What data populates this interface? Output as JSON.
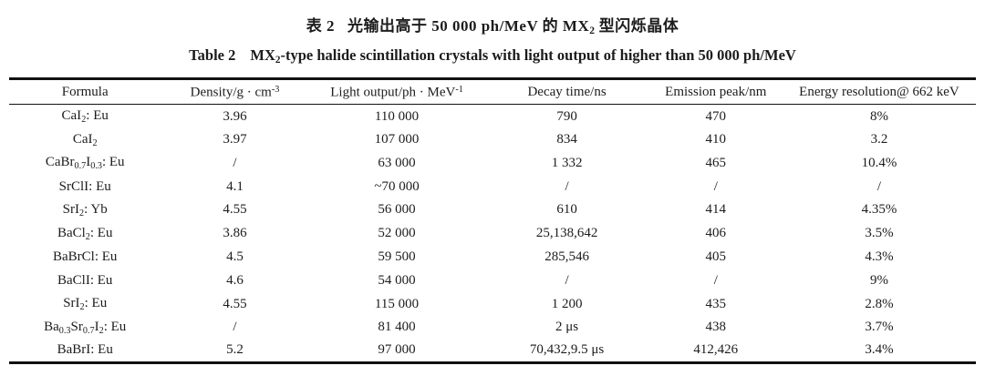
{
  "title": {
    "zh_label": "表 2",
    "zh_text": "光输出高于 50 000 ph/MeV 的 MX_{2} 型闪烁晶体",
    "en_label": "Table 2",
    "en_text": "MX_{2}-type halide scintillation crystals with light output of higher than 50 000 ph/MeV"
  },
  "table": {
    "columns": [
      "Formula",
      "Density/g · cm^{-3}",
      "Light output/ph · MeV^{-1}",
      "Decay time/ns",
      "Emission peak/nm",
      "Energy resolution@ 662 keV"
    ],
    "rows": [
      [
        "CaI_{2}: Eu",
        "3.96",
        "110 000",
        "790",
        "470",
        "8%"
      ],
      [
        "CaI_{2}",
        "3.97",
        "107 000",
        "834",
        "410",
        "3.2"
      ],
      [
        "CaBr_{0.7}I_{0.3}: Eu",
        "/",
        "63 000",
        "1 332",
        "465",
        "10.4%"
      ],
      [
        "SrClI: Eu",
        "4.1",
        "~70 000",
        "/",
        "/",
        "/"
      ],
      [
        "SrI_{2}: Yb",
        "4.55",
        "56 000",
        "610",
        "414",
        "4.35%"
      ],
      [
        "BaCl_{2}: Eu",
        "3.86",
        "52 000",
        "25,138,642",
        "406",
        "3.5%"
      ],
      [
        "BaBrCl: Eu",
        "4.5",
        "59 500",
        "285,546",
        "405",
        "4.3%"
      ],
      [
        "BaClI: Eu",
        "4.6",
        "54 000",
        "/",
        "/",
        "9%"
      ],
      [
        "SrI_{2}: Eu",
        "4.55",
        "115 000",
        "1 200",
        "435",
        "2.8%"
      ],
      [
        "Ba_{0.3}Sr_{0.7}I_{2}: Eu",
        "/",
        "81 400",
        "2 μs",
        "438",
        "3.7%"
      ],
      [
        "BaBrI: Eu",
        "5.2",
        "97 000",
        "70,432,9.5 μs",
        "412,426",
        "3.4%"
      ]
    ]
  },
  "colors": {
    "background": "#ffffff",
    "text": "#1c1c1c",
    "rule": "#111111"
  }
}
